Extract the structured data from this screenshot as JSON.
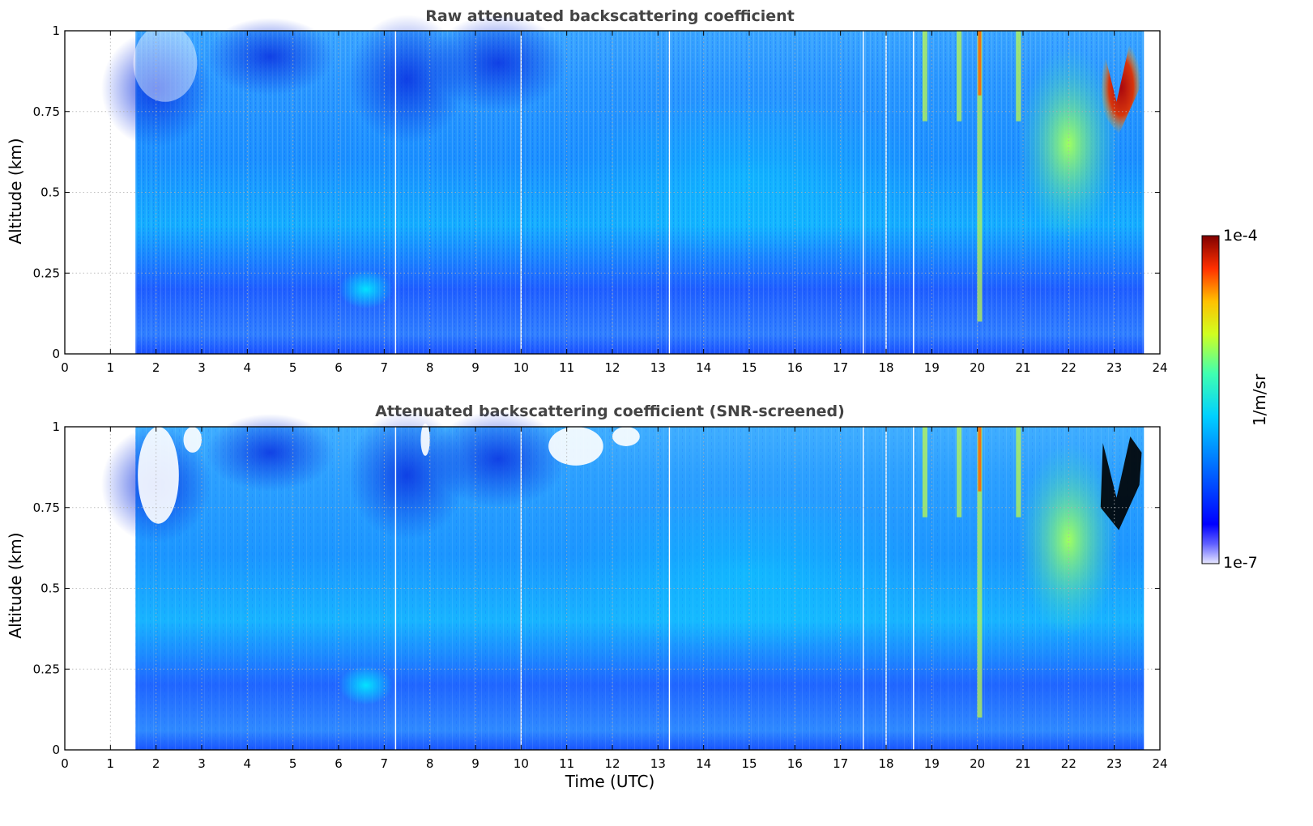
{
  "chart_data": [
    {
      "type": "heatmap",
      "title": "Raw attenuated backscattering coefficient",
      "xlabel": "",
      "ylabel": "Altitude (km)",
      "xlim": [
        0,
        24
      ],
      "ylim": [
        0,
        1
      ],
      "x_ticks": [
        "0",
        "1",
        "2",
        "3",
        "4",
        "5",
        "6",
        "7",
        "8",
        "9",
        "10",
        "11",
        "12",
        "13",
        "14",
        "15",
        "16",
        "17",
        "18",
        "19",
        "20",
        "21",
        "22",
        "23",
        "24"
      ],
      "y_ticks": [
        "0",
        "0.25",
        "0.5",
        "0.75",
        "1"
      ],
      "grid": true,
      "data_start_hour": 1.55,
      "data_end_hour": 23.65,
      "data_gaps_hours": [
        7.25,
        10.0,
        13.25,
        17.5,
        18.0,
        18.6
      ],
      "colormap": "jet",
      "color_range": [
        "1e-7",
        "1e-4"
      ],
      "features": [
        {
          "description": "strong backscatter plume",
          "hours": [
            22.7,
            23.6
          ],
          "altitude_km": [
            0.68,
            0.95
          ],
          "level": "1e-4"
        },
        {
          "description": "elevated layer",
          "hours": [
            19.5,
            20.2
          ],
          "altitude_km": [
            0.5,
            1.0
          ],
          "level": "high"
        }
      ]
    },
    {
      "type": "heatmap",
      "title": "Attenuated backscattering coefficient (SNR-screened)",
      "xlabel": "Time (UTC)",
      "ylabel": "Altitude (km)",
      "xlim": [
        0,
        24
      ],
      "ylim": [
        0,
        1
      ],
      "x_ticks": [
        "0",
        "1",
        "2",
        "3",
        "4",
        "5",
        "6",
        "7",
        "8",
        "9",
        "10",
        "11",
        "12",
        "13",
        "14",
        "15",
        "16",
        "17",
        "18",
        "19",
        "20",
        "21",
        "22",
        "23",
        "24"
      ],
      "y_ticks": [
        "0",
        "0.25",
        "0.5",
        "0.75",
        "1"
      ],
      "grid": true,
      "data_start_hour": 1.55,
      "data_end_hour": 23.65,
      "data_gaps_hours": [
        7.25,
        10.0,
        13.25,
        17.5,
        18.0,
        18.6
      ],
      "colormap": "jet",
      "color_range": [
        "1e-7",
        "1e-4"
      ],
      "screened_out_color": "#ffffff",
      "saturated_color": "#000000"
    }
  ],
  "colorbar": {
    "label": "1/m/sr",
    "max_label": "1e-4",
    "min_label": "1e-7",
    "colormap": "jet"
  }
}
